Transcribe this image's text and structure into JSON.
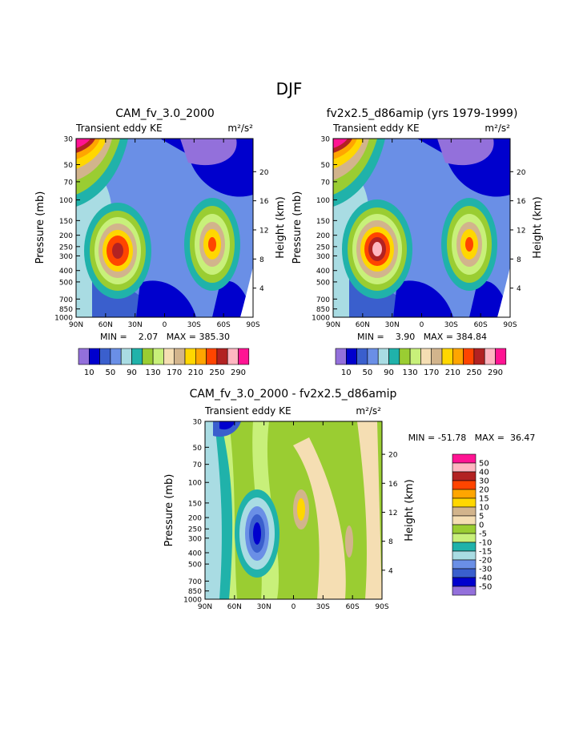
{
  "page": {
    "title": "DJF"
  },
  "chart_data": [
    {
      "type": "heatmap",
      "title": "CAM_fv_3.0_2000",
      "subtitle": "Transient eddy KE",
      "units": "m²/s²",
      "ylabel": "Pressure (mb)",
      "ylabel_right": "Height (km)",
      "x_ticks": [
        "90N",
        "60N",
        "30N",
        "0",
        "30S",
        "60S",
        "90S"
      ],
      "y_ticks": [
        30,
        50,
        70,
        100,
        150,
        200,
        250,
        300,
        400,
        500,
        700,
        850,
        1000
      ],
      "right_ticks": [
        20,
        16,
        12,
        8,
        4
      ],
      "min_max_label": "MIN =    2.07   MAX = 385.30",
      "min": 2.07,
      "max": 385.3,
      "colorbar_labels": [
        "10",
        "50",
        "90",
        "130",
        "170",
        "210",
        "250",
        "290"
      ]
    },
    {
      "type": "heatmap",
      "title": "fv2x2.5_d86amip (yrs 1979-1999)",
      "subtitle": "Transient eddy KE",
      "units": "m²/s²",
      "ylabel": "Pressure (mb)",
      "ylabel_right": "Height (km)",
      "x_ticks": [
        "90N",
        "60N",
        "30N",
        "0",
        "30S",
        "60S",
        "90S"
      ],
      "y_ticks": [
        30,
        50,
        70,
        100,
        150,
        200,
        250,
        300,
        400,
        500,
        700,
        850,
        1000
      ],
      "right_ticks": [
        20,
        16,
        12,
        8,
        4
      ],
      "min_max_label": "MIN =    3.90   MAX = 384.84",
      "min": 3.9,
      "max": 384.84,
      "colorbar_labels": [
        "10",
        "50",
        "90",
        "130",
        "170",
        "210",
        "250",
        "290"
      ]
    },
    {
      "type": "heatmap",
      "title": "CAM_fv_3.0_2000 - fv2x2.5_d86amip",
      "subtitle": "Transient eddy KE",
      "units": "m²/s²",
      "ylabel": "Pressure (mb)",
      "ylabel_right": "Height (km)",
      "x_ticks": [
        "90N",
        "60N",
        "30N",
        "0",
        "30S",
        "60S",
        "90S"
      ],
      "y_ticks": [
        30,
        50,
        70,
        100,
        150,
        200,
        250,
        300,
        400,
        500,
        700,
        850,
        1000
      ],
      "right_ticks": [
        20,
        16,
        12,
        8,
        4
      ],
      "min_max_label": "MIN = -51.78   MAX =  36.47",
      "min": -51.78,
      "max": 36.47,
      "colorbar_labels": [
        "50",
        "40",
        "30",
        "20",
        "15",
        "10",
        "5",
        "0",
        "-5",
        "-10",
        "-15",
        "-20",
        "-30",
        "-40",
        "-50"
      ]
    }
  ],
  "colors": {
    "abs_levels": [
      "#9370db",
      "#0000cd",
      "#3a5fcd",
      "#6a8fe6",
      "#a9dce3",
      "#20b2aa",
      "#9acd32",
      "#c8f07a",
      "#f5deb3",
      "#d2b48c",
      "#ffd700",
      "#ffa500",
      "#ff4500",
      "#b22222",
      "#ffb6c1",
      "#ff1493"
    ],
    "diff_levels": [
      "#ff1493",
      "#ffb6c1",
      "#b22222",
      "#ff4500",
      "#ffa500",
      "#ffd700",
      "#d2b48c",
      "#f5deb3",
      "#9acd32",
      "#c8f07a",
      "#20b2aa",
      "#a9dce3",
      "#6a8fe6",
      "#3a5fcd",
      "#0000cd",
      "#9370db"
    ]
  }
}
